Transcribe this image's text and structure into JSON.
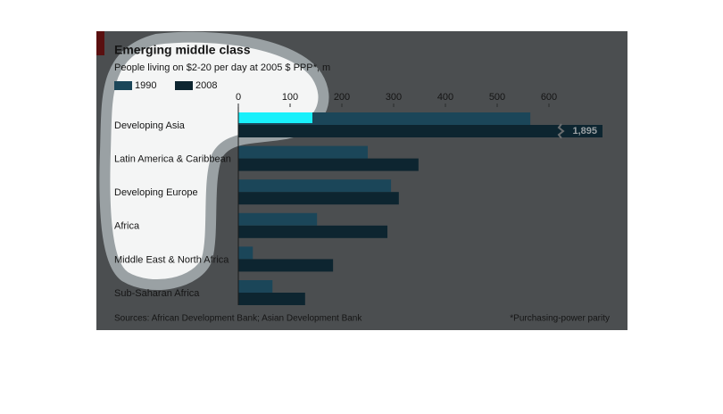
{
  "chart_data": {
    "type": "barh",
    "title": "Emerging middle class",
    "subtitle": "People living on $2-20 per day at 2005 $ PPP*, m",
    "categories": [
      "Developing Asia",
      "Latin America & Caribbean",
      "Developing Europe",
      "Africa",
      "Middle East & North Africa",
      "Sub-Saharan Africa"
    ],
    "series": [
      {
        "name": "1990",
        "color": "#1b4659",
        "values": [
          564,
          250,
          295,
          152,
          28,
          66
        ]
      },
      {
        "name": "2008",
        "color": "#0d2530",
        "values": [
          1895,
          348,
          310,
          288,
          183,
          129
        ],
        "value_labels": [
          "1,895",
          null,
          null,
          null,
          null,
          null
        ]
      }
    ],
    "xlim": [
      0,
      600
    ],
    "xticks": [
      0,
      100,
      200,
      300,
      400,
      500,
      600
    ],
    "source": "Sources: African Development Bank; Asian Development Bank",
    "note": "*Purchasing-power parity"
  }
}
